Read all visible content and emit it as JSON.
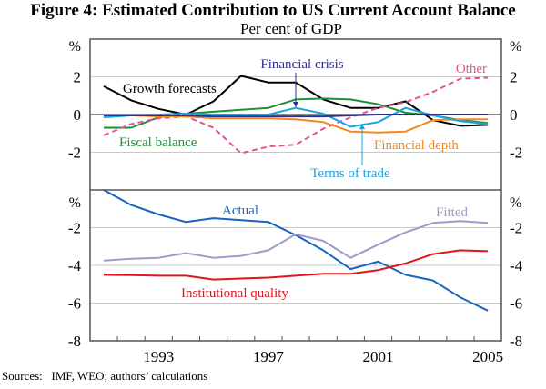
{
  "title": "Figure 4: Estimated Contribution to US Current Account Balance",
  "subtitle": "Per cent of GDP",
  "sources": "Sources:   IMF, WEO; authors’ calculations",
  "chart_data": [
    {
      "type": "line",
      "panel": "top",
      "unit_label": "%",
      "ylim": [
        -4,
        4
      ],
      "yticks": [
        2,
        0,
        -2
      ],
      "ytick_labels": [
        "2",
        "0",
        "-2"
      ],
      "grid": true,
      "x": [
        1991,
        1992,
        1993,
        1994,
        1995,
        1996,
        1997,
        1998,
        1999,
        2000,
        2001,
        2002,
        2003,
        2004,
        2005
      ],
      "series": [
        {
          "name": "Growth forecasts",
          "color": "#000000",
          "dashed": false,
          "values": [
            1.5,
            0.75,
            0.3,
            0.0,
            0.7,
            2.05,
            1.7,
            1.7,
            0.8,
            0.35,
            0.35,
            0.7,
            -0.3,
            -0.6,
            -0.55
          ]
        },
        {
          "name": "Fiscal balance",
          "color": "#1f8f3a",
          "dashed": false,
          "values": [
            -0.7,
            -0.7,
            -0.15,
            0.05,
            0.15,
            0.25,
            0.35,
            0.8,
            0.85,
            0.8,
            0.55,
            0.1,
            -0.05,
            -0.3,
            -0.45
          ]
        },
        {
          "name": "Other",
          "color": "#e8519a",
          "dashed": true,
          "values": [
            -1.1,
            -0.5,
            -0.2,
            -0.1,
            -0.7,
            -2.05,
            -1.7,
            -1.6,
            -0.75,
            -0.15,
            0.35,
            0.65,
            1.2,
            1.9,
            1.95
          ]
        },
        {
          "name": "Financial depth",
          "color": "#f28a1e",
          "dashed": false,
          "values": [
            -0.05,
            -0.05,
            -0.1,
            -0.1,
            -0.2,
            -0.2,
            -0.2,
            -0.25,
            -0.4,
            -0.9,
            -0.95,
            -0.9,
            -0.3,
            -0.25,
            -0.25
          ]
        },
        {
          "name": "Terms of trade",
          "color": "#1aa3e0",
          "dashed": false,
          "values": [
            -0.15,
            -0.05,
            0.0,
            0.05,
            0.0,
            0.0,
            0.0,
            0.35,
            0.05,
            -0.65,
            -0.4,
            0.35,
            -0.05,
            -0.35,
            -0.5
          ]
        },
        {
          "name": "Financial crisis",
          "color": "#2e2e8c",
          "dashed": false,
          "values": [
            -0.05,
            -0.05,
            -0.05,
            -0.05,
            -0.1,
            -0.1,
            -0.1,
            -0.1,
            -0.1,
            -0.05,
            0.0,
            0.0,
            0.0,
            0.0,
            0.0
          ]
        }
      ],
      "annotations": [
        {
          "text": "Growth forecasts",
          "color": "#000000"
        },
        {
          "text": "Fiscal balance",
          "color": "#1f8f3a"
        },
        {
          "text": "Financial crisis",
          "color": "#2e2e8c",
          "arrow": true
        },
        {
          "text": "Other",
          "color": "#e8519a"
        },
        {
          "text": "Financial depth",
          "color": "#f28a1e"
        },
        {
          "text": "Terms of trade",
          "color": "#1aa3e0",
          "arrow": true
        }
      ]
    },
    {
      "type": "line",
      "panel": "bottom",
      "unit_label": "%",
      "ylim": [
        -8,
        0
      ],
      "yticks": [
        -2,
        -4,
        -6,
        -8
      ],
      "ytick_labels": [
        "-2",
        "-4",
        "-6",
        "-8"
      ],
      "grid": true,
      "x": [
        1991,
        1992,
        1993,
        1994,
        1995,
        1996,
        1997,
        1998,
        1999,
        2000,
        2001,
        2002,
        2003,
        2004,
        2005
      ],
      "xtick_labels": [
        "1993",
        "1997",
        "2001",
        "2005"
      ],
      "xtick_label_years": [
        1993,
        1997,
        2001,
        2005
      ],
      "series": [
        {
          "name": "Actual",
          "color": "#1565c0",
          "dashed": false,
          "values": [
            0.0,
            -0.8,
            -1.3,
            -1.7,
            -1.5,
            -1.6,
            -1.7,
            -2.4,
            -3.2,
            -4.2,
            -3.8,
            -4.5,
            -4.8,
            -5.7,
            -6.4
          ]
        },
        {
          "name": "Fitted",
          "color": "#9c9ccc",
          "dashed": false,
          "values": [
            -3.75,
            -3.65,
            -3.6,
            -3.35,
            -3.6,
            -3.5,
            -3.2,
            -2.35,
            -2.7,
            -3.6,
            -2.9,
            -2.25,
            -1.75,
            -1.65,
            -1.75
          ]
        },
        {
          "name": "Institutional quality",
          "color": "#e3141e",
          "dashed": false,
          "values": [
            -4.5,
            -4.52,
            -4.55,
            -4.55,
            -4.75,
            -4.7,
            -4.65,
            -4.55,
            -4.45,
            -4.45,
            -4.25,
            -3.9,
            -3.4,
            -3.2,
            -3.25
          ]
        }
      ],
      "annotations": [
        {
          "text": "Actual",
          "color": "#1565c0"
        },
        {
          "text": "Fitted",
          "color": "#9c9ccc"
        },
        {
          "text": "Institutional quality",
          "color": "#e3141e"
        }
      ]
    }
  ]
}
